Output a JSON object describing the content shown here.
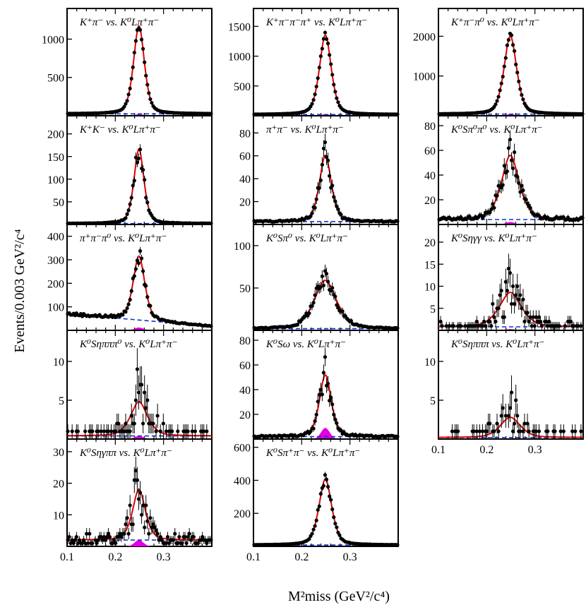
{
  "figure": {
    "ylabel": "Events/0.003 GeV²/c⁴",
    "xlabel": "M²miss (GeV²/c⁴)"
  },
  "chart_data": {
    "type": "scatter",
    "x_range": [
      0.1,
      0.4
    ],
    "x_ticks": [
      0.1,
      0.2,
      0.3
    ],
    "x_tick_labels": [
      "0.1",
      "0.2",
      "0.3"
    ],
    "xlabel": "M²miss (GeV²/c⁴)",
    "ylabel": "Events/0.003 GeV²/c⁴",
    "colors": {
      "data": "#000000",
      "fit": "#e00000",
      "background": "#1030d0",
      "peaking_bkg": "#e000e0"
    },
    "panels": [
      {
        "col": 0,
        "row": 0,
        "label": "K⁺π⁻ vs. K⁰Lπ⁺π⁻",
        "ylim": [
          0,
          1400
        ],
        "yticks": [
          500,
          1000
        ],
        "peak": 1130,
        "width": 0.012,
        "bkg": 25,
        "bkg_slope": 0,
        "noise": 0.02,
        "peaking": 20
      },
      {
        "col": 0,
        "row": 1,
        "label": "K⁺K⁻ vs. K⁰Lπ⁺π⁻",
        "ylim": [
          0,
          240
        ],
        "yticks": [
          50,
          100,
          150,
          200
        ],
        "peak": 165,
        "width": 0.011,
        "bkg": 2,
        "bkg_slope": 0,
        "noise": 0.08,
        "peaking": 0
      },
      {
        "col": 0,
        "row": 2,
        "label": "π⁺π⁻π⁰ vs. K⁰Lπ⁺π⁻",
        "ylim": [
          0,
          450
        ],
        "yticks": [
          100,
          200,
          300,
          400
        ],
        "peak": 260,
        "width": 0.013,
        "bkg": 35,
        "bkg_slope": 35,
        "noise": 0.06,
        "peaking": 12
      },
      {
        "col": 0,
        "row": 3,
        "label": "K⁰Sηπππ⁰ vs. K⁰Lπ⁺π⁻",
        "ylim": [
          0,
          14
        ],
        "yticks": [
          5,
          10
        ],
        "peak": 4,
        "width": 0.02,
        "bkg": 0.4,
        "bkg_slope": 0,
        "noise": 0.5,
        "peaking": 0.4
      },
      {
        "col": 0,
        "row": 4,
        "label": "K⁰Sηγππ vs. K⁰Lπ⁺π⁻",
        "ylim": [
          0,
          34
        ],
        "yticks": [
          10,
          20,
          30
        ],
        "peak": 14,
        "width": 0.015,
        "bkg": 2,
        "bkg_slope": 0,
        "noise": 0.35,
        "peaking": 2
      },
      {
        "col": 1,
        "row": 0,
        "label": "K⁺π⁻π⁻π⁺ vs. K⁰Lπ⁺π⁻",
        "ylim": [
          0,
          1800
        ],
        "yticks": [
          500,
          1000,
          1500
        ],
        "peak": 1310,
        "width": 0.013,
        "bkg": 20,
        "bkg_slope": 0,
        "noise": 0.02,
        "peaking": 25
      },
      {
        "col": 1,
        "row": 1,
        "label": "π⁺π⁻ vs. K⁰Lπ⁺π⁻",
        "ylim": [
          0,
          95
        ],
        "yticks": [
          20,
          40,
          60,
          80
        ],
        "peak": 58,
        "width": 0.013,
        "bkg": 2.5,
        "bkg_slope": 0,
        "noise": 0.12,
        "peaking": 0
      },
      {
        "col": 1,
        "row": 2,
        "label": "K⁰Sπ⁰ vs. K⁰Lπ⁺π⁻",
        "ylim": [
          0,
          125
        ],
        "yticks": [
          50,
          100
        ],
        "peak": 56,
        "width": 0.025,
        "bkg": 2,
        "bkg_slope": 0,
        "noise": 0.12,
        "peaking": 1
      },
      {
        "col": 1,
        "row": 3,
        "label": "K⁰Sω vs. K⁰Lπ⁺π⁻",
        "ylim": [
          0,
          88
        ],
        "yticks": [
          20,
          40,
          60,
          80
        ],
        "peak": 41,
        "width": 0.014,
        "bkg": 2,
        "bkg_slope": 0,
        "noise": 0.18,
        "peaking": 9
      },
      {
        "col": 1,
        "row": 4,
        "label": "K⁰Sπ⁺π⁻ vs. K⁰Lπ⁺π⁻",
        "ylim": [
          0,
          650
        ],
        "yticks": [
          200,
          400,
          600
        ],
        "peak": 400,
        "width": 0.014,
        "bkg": 8,
        "bkg_slope": 0,
        "noise": 0.04,
        "peaking": 0
      },
      {
        "col": 2,
        "row": 0,
        "label": "K⁺π⁻π⁰ vs. K⁰Lπ⁺π⁻",
        "ylim": [
          0,
          2700
        ],
        "yticks": [
          1000,
          2000
        ],
        "peak": 1930,
        "width": 0.014,
        "bkg": 40,
        "bkg_slope": 0,
        "noise": 0.02,
        "peaking": 40
      },
      {
        "col": 2,
        "row": 1,
        "label": "K⁰Sπ⁰π⁰ vs. K⁰Lπ⁺π⁻",
        "ylim": [
          0,
          88
        ],
        "yticks": [
          20,
          40,
          60,
          80
        ],
        "peak": 50,
        "width": 0.02,
        "bkg": 4,
        "bkg_slope": 0,
        "noise": 0.15,
        "peaking": 2
      },
      {
        "col": 2,
        "row": 2,
        "label": "K⁰Sηγγ vs. K⁰Lπ⁺π⁻",
        "ylim": [
          0,
          24
        ],
        "yticks": [
          5,
          10,
          15,
          20
        ],
        "peak": 7.5,
        "width": 0.025,
        "bkg": 0.8,
        "bkg_slope": 0,
        "noise": 0.45,
        "peaking": 0.3
      },
      {
        "col": 2,
        "row": 3,
        "label": "K⁰Sηπππ vs. K⁰Lπ⁺π⁻",
        "ylim": [
          0,
          14
        ],
        "yticks": [
          5,
          10
        ],
        "peak": 2.6,
        "width": 0.022,
        "bkg": 0.2,
        "bkg_slope": 0,
        "noise": 0.6,
        "peaking": 0
      }
    ]
  }
}
